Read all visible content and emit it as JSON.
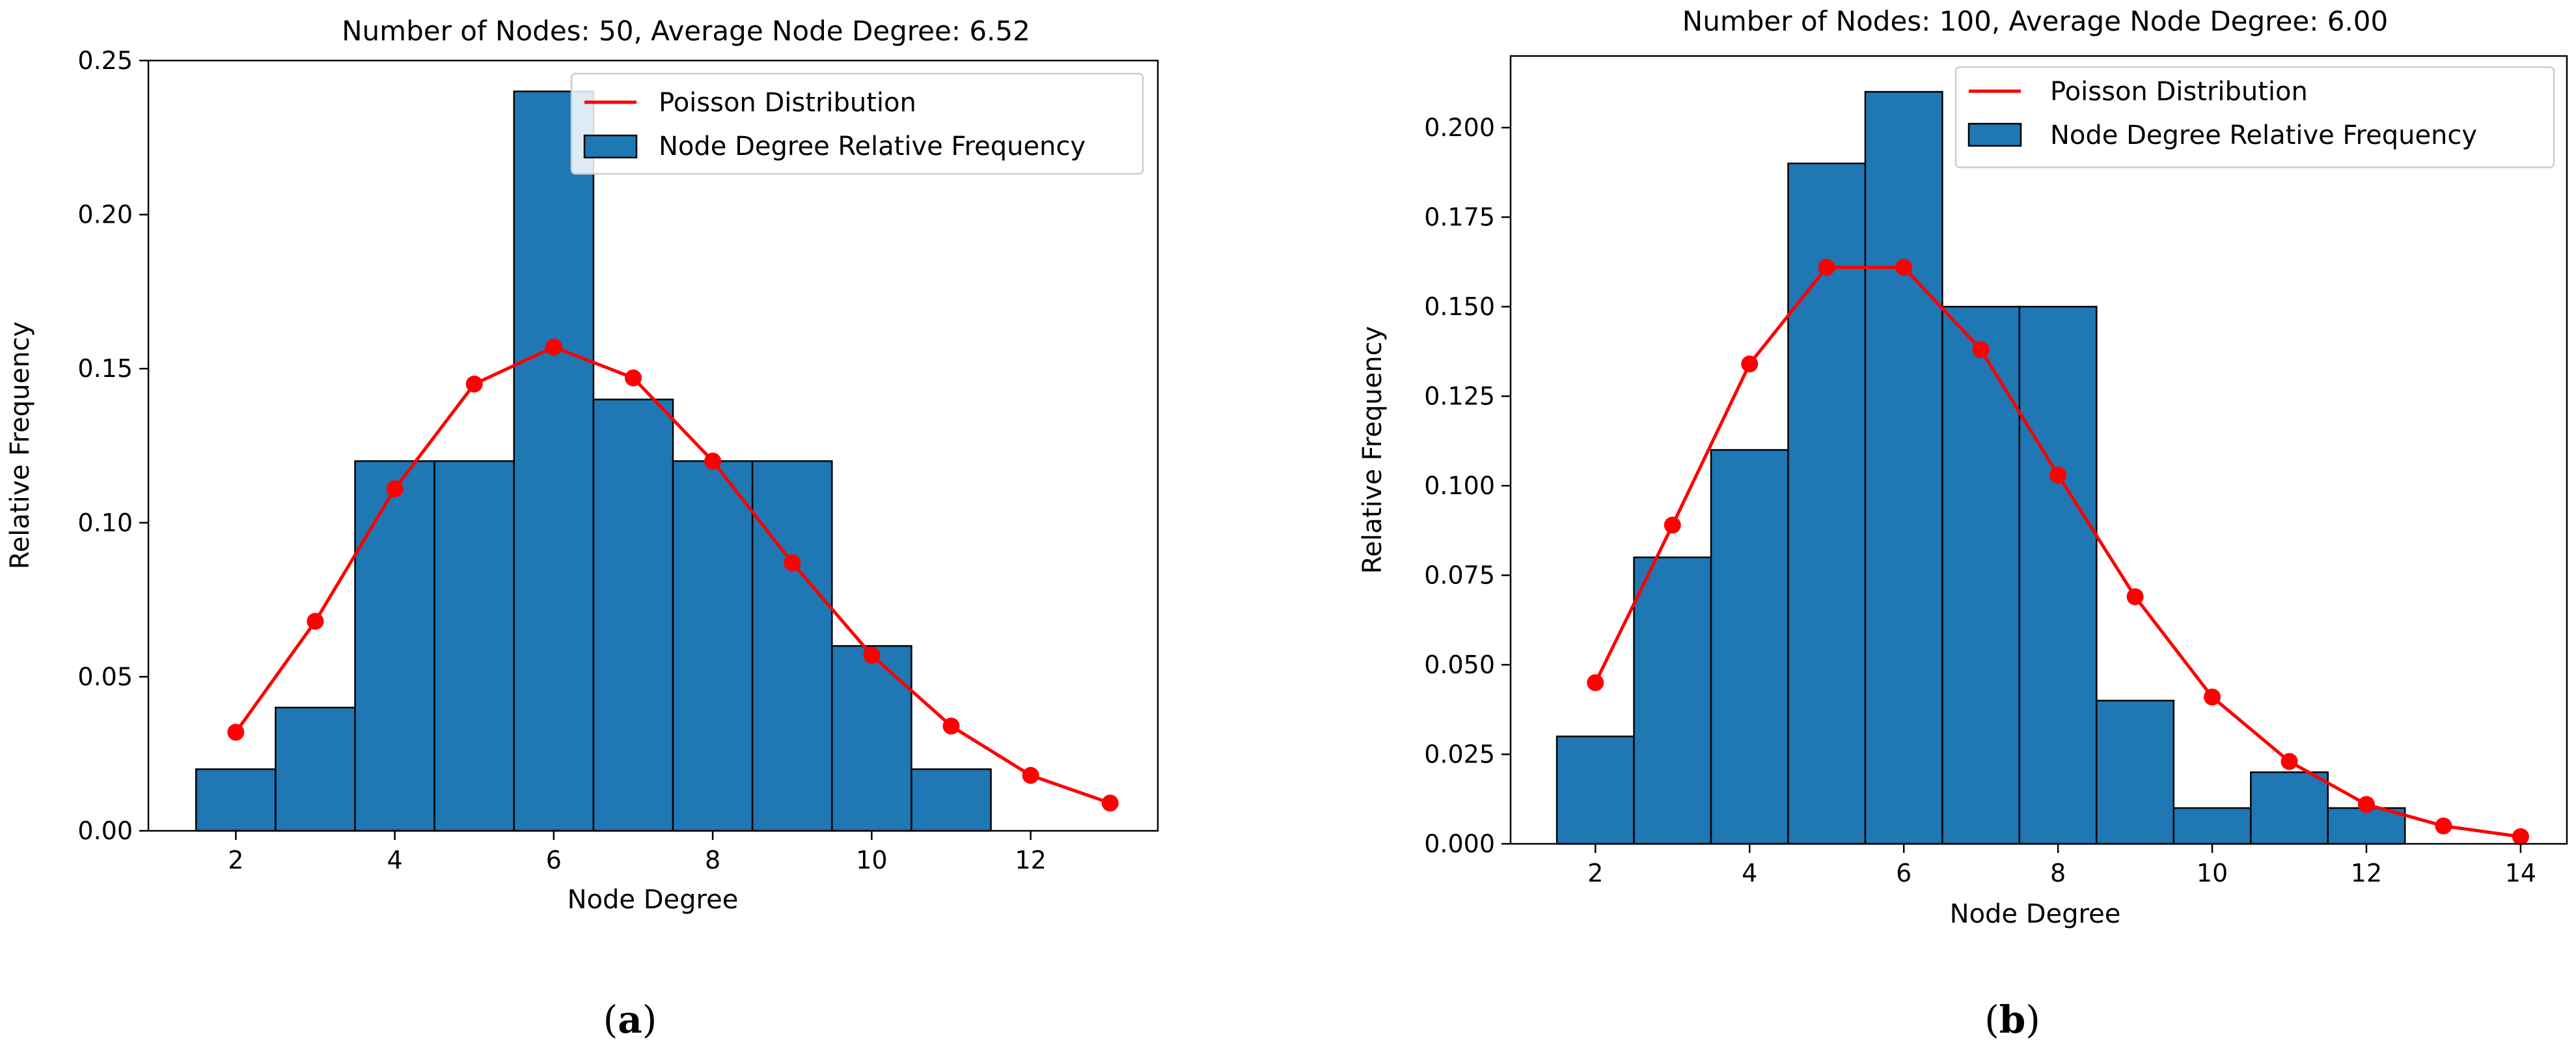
{
  "colors": {
    "bar_fill": "#1f77b4",
    "bar_edge": "#000000",
    "poisson": "#ff0000",
    "axis": "#000000",
    "background": "#ffffff"
  },
  "chart_data": [
    {
      "type": "bar",
      "panel_label": "a",
      "title": "Number of Nodes: 50, Average Node Degree: 6.52",
      "xlabel": "Node Degree",
      "ylabel": "Relative Frequency",
      "xlim": [
        0.9,
        13.6
      ],
      "ylim": [
        0,
        0.25
      ],
      "xticks": [
        2,
        4,
        6,
        8,
        10,
        12
      ],
      "xtick_labels": [
        "2",
        "4",
        "6",
        "8",
        "10",
        "12"
      ],
      "yticks": [
        0,
        0.05,
        0.1,
        0.15,
        0.2,
        0.25
      ],
      "ytick_labels": [
        "0.00",
        "0.05",
        "0.10",
        "0.15",
        "0.20",
        "0.25"
      ],
      "legend_position": "top-right",
      "legend": [
        "Poisson Distribution",
        "Node Degree Relative Frequency"
      ],
      "bars": {
        "name": "Node Degree Relative Frequency",
        "x": [
          2,
          3,
          4,
          5,
          6,
          7,
          8,
          9,
          10,
          11,
          12
        ],
        "values": [
          0.02,
          0.04,
          0.12,
          0.12,
          0.24,
          0.14,
          0.12,
          0.12,
          0.06,
          0.02,
          0.0
        ]
      },
      "line": {
        "name": "Poisson Distribution",
        "x": [
          2,
          3,
          4,
          5,
          6,
          7,
          8,
          9,
          10,
          11,
          12,
          13
        ],
        "values": [
          0.032,
          0.068,
          0.111,
          0.145,
          0.157,
          0.147,
          0.12,
          0.087,
          0.057,
          0.034,
          0.018,
          0.009
        ]
      }
    },
    {
      "type": "bar",
      "panel_label": "b",
      "title": "Number of Nodes: 100, Average Node Degree: 6.00",
      "xlabel": "Node Degree",
      "ylabel": "Relative Frequency",
      "xlim": [
        0.9,
        14.6
      ],
      "ylim": [
        0,
        0.22
      ],
      "xticks": [
        2,
        4,
        6,
        8,
        10,
        12,
        14
      ],
      "xtick_labels": [
        "2",
        "4",
        "6",
        "8",
        "10",
        "12",
        "14"
      ],
      "yticks": [
        0,
        0.025,
        0.05,
        0.075,
        0.1,
        0.125,
        0.15,
        0.175,
        0.2
      ],
      "ytick_labels": [
        "0.000",
        "0.025",
        "0.050",
        "0.075",
        "0.100",
        "0.125",
        "0.150",
        "0.175",
        "0.200"
      ],
      "legend_position": "top-right",
      "legend": [
        "Poisson Distribution",
        "Node Degree Relative Frequency"
      ],
      "bars": {
        "name": "Node Degree Relative Frequency",
        "x": [
          2,
          3,
          4,
          5,
          6,
          7,
          8,
          9,
          10,
          11,
          12
        ],
        "values": [
          0.03,
          0.08,
          0.11,
          0.19,
          0.21,
          0.15,
          0.15,
          0.04,
          0.01,
          0.02,
          0.01
        ]
      },
      "line": {
        "name": "Poisson Distribution",
        "x": [
          2,
          3,
          4,
          5,
          6,
          7,
          8,
          9,
          10,
          11,
          12,
          13,
          14
        ],
        "values": [
          0.045,
          0.089,
          0.134,
          0.161,
          0.161,
          0.138,
          0.103,
          0.069,
          0.041,
          0.023,
          0.011,
          0.005,
          0.002
        ]
      }
    }
  ]
}
